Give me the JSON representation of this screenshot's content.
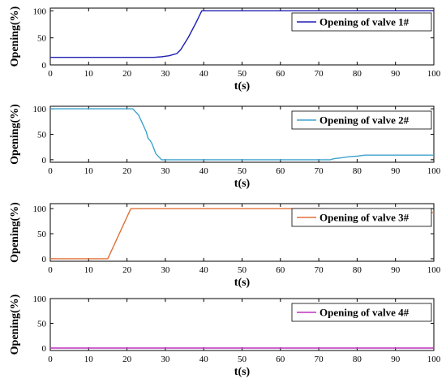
{
  "chart_data": [
    {
      "type": "line",
      "xlabel": "t(s)",
      "ylabel": "Opening(%)",
      "xlim": [
        0,
        100
      ],
      "ylim": [
        0,
        105
      ],
      "xticks": [
        "0",
        "10",
        "20",
        "30",
        "40",
        "50",
        "60",
        "70",
        "80",
        "90",
        "100"
      ],
      "yticks": [
        "0",
        "50",
        "100"
      ],
      "legend_position": "top-right",
      "grid": false,
      "series": [
        {
          "name": "Opening of valve 1#",
          "color": "#1f1fb4",
          "x": [
            0,
            27,
            29,
            30,
            31,
            32,
            33,
            34,
            36,
            38,
            39.5,
            100
          ],
          "y": [
            14,
            14,
            15,
            16,
            17,
            19,
            21,
            28,
            51,
            78,
            100,
            100
          ]
        }
      ]
    },
    {
      "type": "line",
      "xlabel": "t(s)",
      "ylabel": "Opening(%)",
      "xlim": [
        0,
        100
      ],
      "ylim": [
        -5,
        105
      ],
      "xticks": [
        "0",
        "10",
        "20",
        "30",
        "40",
        "50",
        "60",
        "70",
        "80",
        "90",
        "100"
      ],
      "yticks": [
        "0",
        "50",
        "100"
      ],
      "legend_position": "top-right",
      "grid": false,
      "series": [
        {
          "name": "Opening of valve 2#",
          "color": "#3fa3cf",
          "x": [
            0,
            21.5,
            23,
            24,
            25,
            25.5,
            26,
            26.5,
            27,
            27.5,
            28,
            29,
            30,
            73,
            74,
            76,
            78,
            80,
            82,
            100
          ],
          "y": [
            100,
            100,
            88,
            72,
            55,
            42,
            38,
            32,
            22,
            12,
            8,
            0,
            0,
            0,
            2,
            4,
            6,
            7,
            9,
            9
          ]
        }
      ]
    },
    {
      "type": "line",
      "xlabel": "t(s)",
      "ylabel": "Opening(%)",
      "xlim": [
        0,
        100
      ],
      "ylim": [
        -5,
        110
      ],
      "xticks": [
        "0",
        "10",
        "20",
        "30",
        "40",
        "50",
        "60",
        "70",
        "80",
        "90",
        "100"
      ],
      "yticks": [
        "0",
        "50",
        "100"
      ],
      "legend_position": "top-right",
      "grid": false,
      "series": [
        {
          "name": "Opening of valve 3#",
          "color": "#e07038",
          "x": [
            0,
            15,
            21,
            72,
            74,
            76,
            78,
            80,
            82,
            100
          ],
          "y": [
            0,
            0,
            100,
            100,
            98,
            96,
            95,
            94,
            92,
            92
          ]
        }
      ]
    },
    {
      "type": "line",
      "xlabel": "t(s)",
      "ylabel": "Opening(%)",
      "xlim": [
        0,
        100
      ],
      "ylim": [
        -5,
        100
      ],
      "xticks": [
        "0",
        "10",
        "20",
        "30",
        "40",
        "50",
        "60",
        "70",
        "80",
        "90",
        "100"
      ],
      "yticks": [
        "0",
        "50",
        "100"
      ],
      "legend_position": "top-right",
      "grid": false,
      "series": [
        {
          "name": "Opening of valve 4#",
          "color": "#c030c0",
          "x": [
            0,
            100
          ],
          "y": [
            0,
            0
          ]
        }
      ]
    }
  ]
}
